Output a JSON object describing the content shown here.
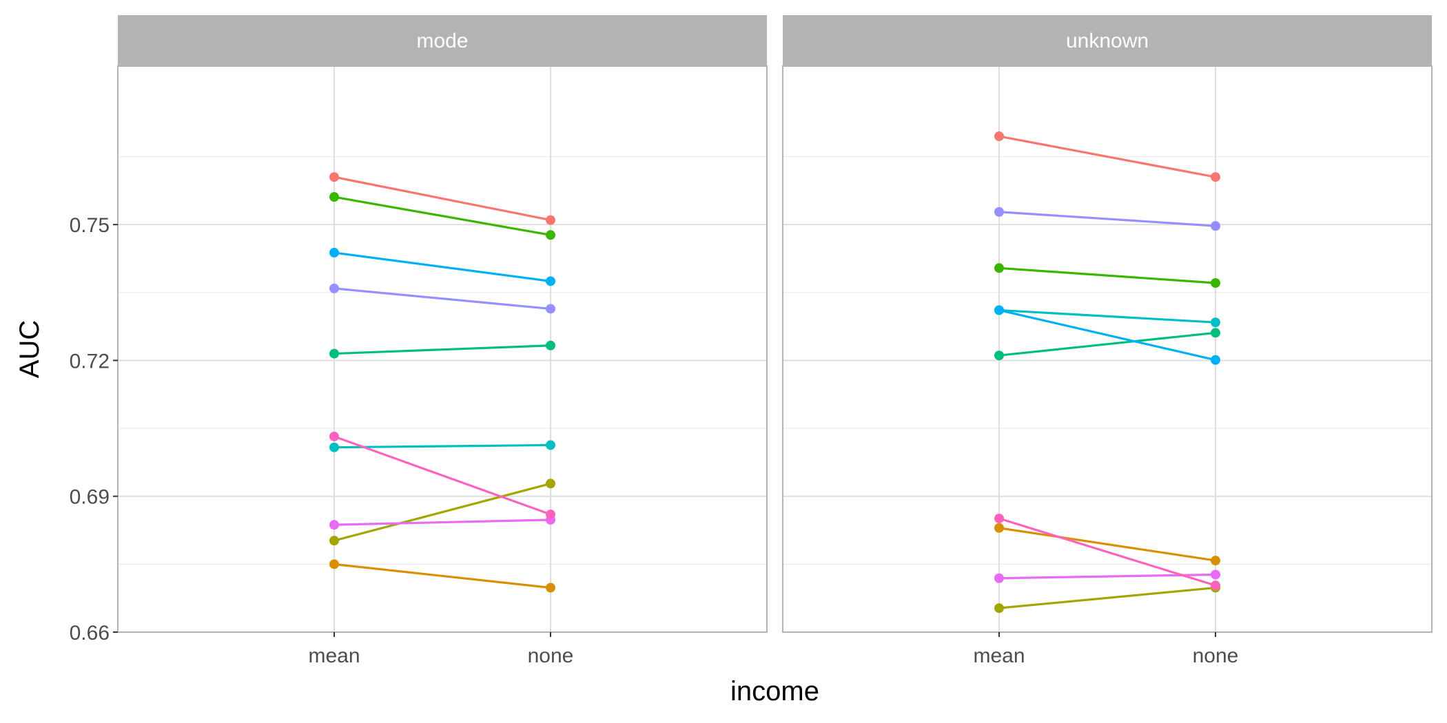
{
  "chart_data": {
    "type": "line",
    "xlabel": "income",
    "ylabel": "AUC",
    "categories": [
      "mean",
      "none"
    ],
    "ylim": [
      0.66,
      0.785
    ],
    "yticks": [
      0.66,
      0.69,
      0.72,
      0.75
    ],
    "ytick_labels": [
      "0.66",
      "0.69",
      "0.72",
      "0.75"
    ],
    "grid": true,
    "legend": "none",
    "panels": [
      {
        "title": "mode",
        "series": [
          {
            "color": "#F8766D",
            "values": [
              0.7605,
              0.751
            ]
          },
          {
            "color": "#D89000",
            "values": [
              0.675,
              0.6698
            ]
          },
          {
            "color": "#A3A500",
            "values": [
              0.6802,
              0.6928
            ]
          },
          {
            "color": "#39B600",
            "values": [
              0.7561,
              0.7477
            ]
          },
          {
            "color": "#00BF7D",
            "values": [
              0.7215,
              0.7233
            ]
          },
          {
            "color": "#00BFC4",
            "values": [
              0.7008,
              0.7013
            ]
          },
          {
            "color": "#00B0F6",
            "values": [
              0.7438,
              0.7375
            ]
          },
          {
            "color": "#9590FF",
            "values": [
              0.7359,
              0.7314
            ]
          },
          {
            "color": "#E76BF3",
            "values": [
              0.6837,
              0.6848
            ]
          },
          {
            "color": "#FF62BC",
            "values": [
              0.7032,
              0.686
            ]
          }
        ]
      },
      {
        "title": "unknown",
        "series": [
          {
            "color": "#F8766D",
            "values": [
              0.7695,
              0.7605
            ]
          },
          {
            "color": "#D89000",
            "values": [
              0.683,
              0.6758
            ]
          },
          {
            "color": "#A3A500",
            "values": [
              0.6653,
              0.6698
            ]
          },
          {
            "color": "#39B600",
            "values": [
              0.7404,
              0.7371
            ]
          },
          {
            "color": "#00BF7D",
            "values": [
              0.7211,
              0.7261
            ]
          },
          {
            "color": "#00BFC4",
            "values": [
              0.7311,
              0.7284
            ]
          },
          {
            "color": "#00B0F6",
            "values": [
              0.7311,
              0.7201
            ]
          },
          {
            "color": "#9590FF",
            "values": [
              0.7528,
              0.7497
            ]
          },
          {
            "color": "#E76BF3",
            "values": [
              0.6719,
              0.6727
            ]
          },
          {
            "color": "#FF62BC",
            "values": [
              0.6851,
              0.6703
            ]
          }
        ]
      }
    ]
  }
}
